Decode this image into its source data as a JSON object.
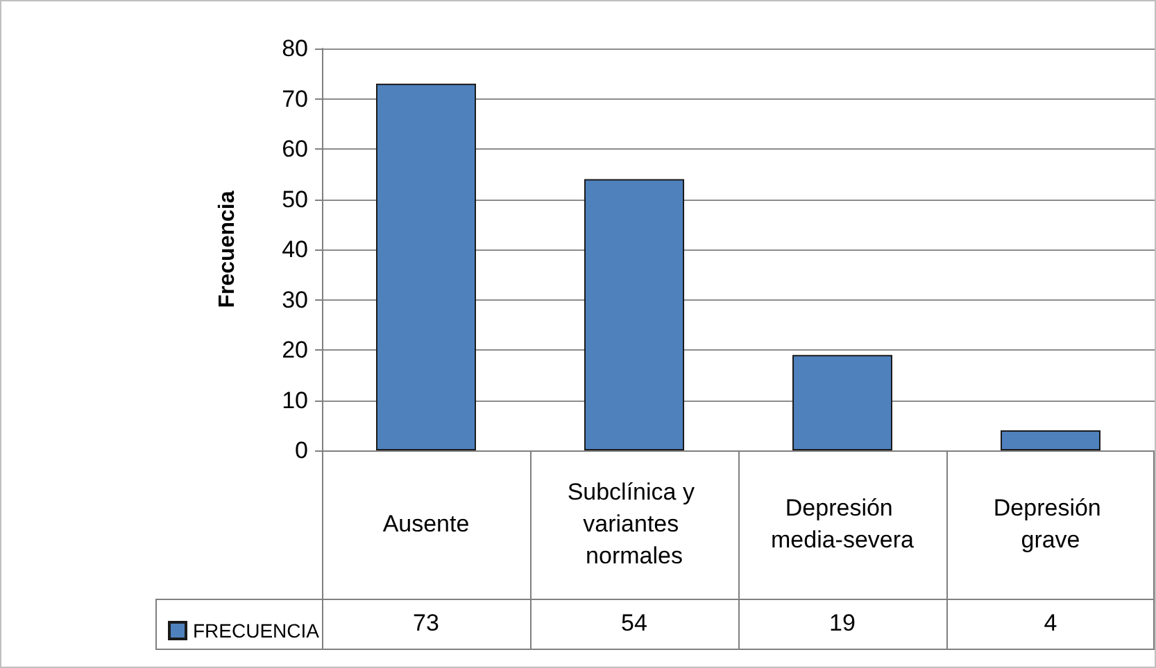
{
  "chart_data": {
    "type": "bar",
    "ylabel": "Frecuencia",
    "categories": [
      "Ausente",
      "Subclínica y variantes normales",
      "Depresión media-severa",
      "Depresión grave"
    ],
    "series": [
      {
        "name": "FRECUENCIA",
        "color": "#4f81bd",
        "values": [
          73,
          54,
          19,
          4
        ]
      }
    ],
    "ylim": [
      0,
      80
    ],
    "yticks": [
      0,
      10,
      20,
      30,
      40,
      50,
      60,
      70,
      80
    ],
    "grid": "y",
    "legend": "bottom left",
    "data_labels": true
  }
}
